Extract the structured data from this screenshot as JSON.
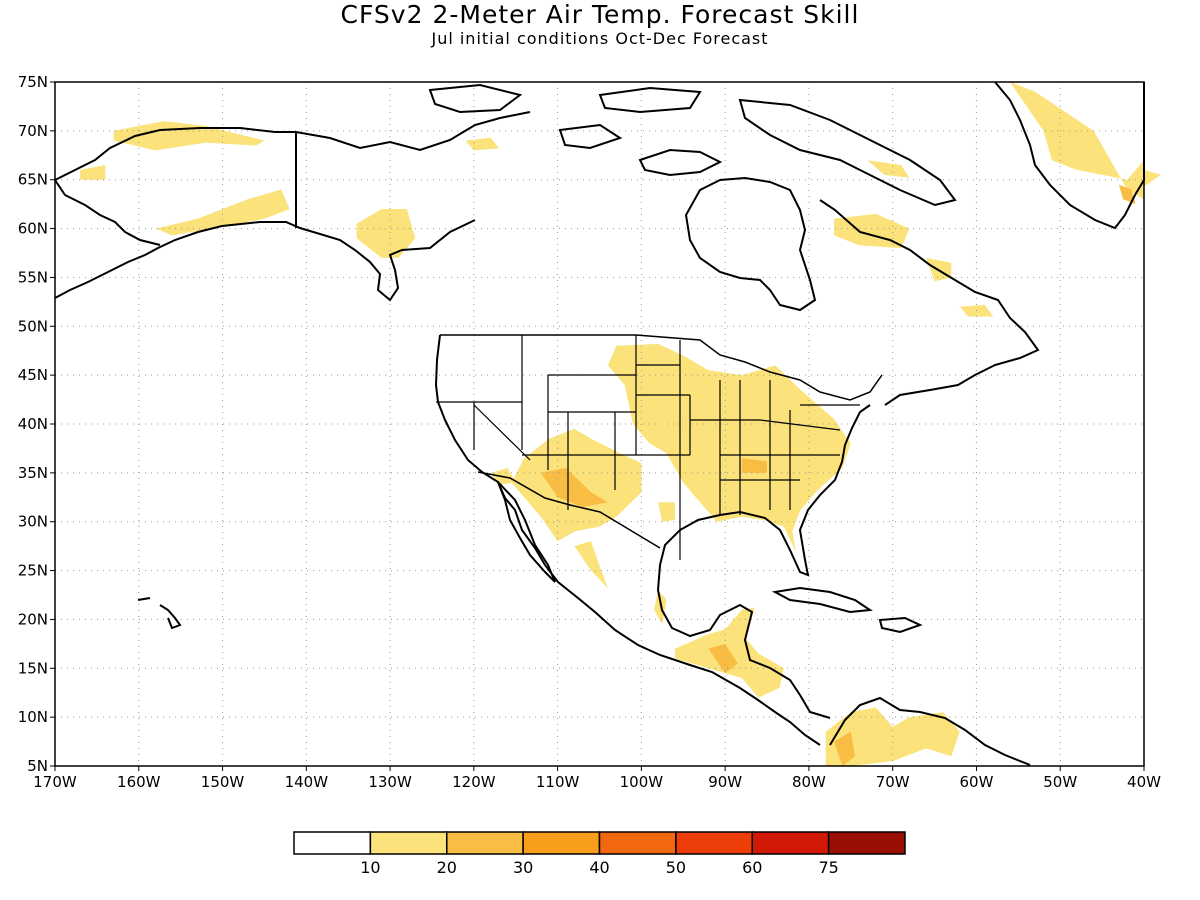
{
  "title": "CFSv2 2-Meter Air Temp. Forecast Skill",
  "subtitle": "Jul initial conditions  Oct-Dec Forecast",
  "map": {
    "lon_range": [
      -170,
      -40
    ],
    "lat_range": [
      5,
      75
    ],
    "lat_ticks": [
      5,
      10,
      15,
      20,
      25,
      30,
      35,
      40,
      45,
      50,
      55,
      60,
      65,
      70,
      75
    ],
    "lat_tick_labels": [
      "5N",
      "10N",
      "15N",
      "20N",
      "25N",
      "30N",
      "35N",
      "40N",
      "45N",
      "50N",
      "55N",
      "60N",
      "65N",
      "70N",
      "75N"
    ],
    "lon_ticks": [
      -170,
      -160,
      -150,
      -140,
      -130,
      -120,
      -110,
      -100,
      -90,
      -80,
      -70,
      -60,
      -50,
      -40
    ],
    "lon_tick_labels": [
      "170W",
      "160W",
      "150W",
      "140W",
      "130W",
      "120W",
      "110W",
      "100W",
      "90W",
      "80W",
      "70W",
      "60W",
      "50W",
      "40W"
    ],
    "grid": "dotted",
    "land_outline_color": "#000000",
    "skill_regions": [
      {
        "name": "alaska-north",
        "level": 1,
        "poly": [
          [
            -163,
            70
          ],
          [
            -157,
            71
          ],
          [
            -152,
            70.5
          ],
          [
            -145,
            69
          ],
          [
            -146,
            68.5
          ],
          [
            -152,
            68.8
          ],
          [
            -158,
            68
          ],
          [
            -163,
            69
          ]
        ]
      },
      {
        "name": "alaska-south",
        "level": 1,
        "poly": [
          [
            -158,
            60
          ],
          [
            -153,
            61
          ],
          [
            -147,
            63
          ],
          [
            -143,
            64
          ],
          [
            -142,
            62
          ],
          [
            -145,
            61
          ],
          [
            -150,
            60.2
          ],
          [
            -156,
            59.3
          ]
        ]
      },
      {
        "name": "west-alaska",
        "level": 1,
        "poly": [
          [
            -167,
            66
          ],
          [
            -164,
            66.5
          ],
          [
            -164,
            65
          ],
          [
            -167,
            65
          ]
        ]
      },
      {
        "name": "bc-coast",
        "level": 1,
        "poly": [
          [
            -134,
            60.5
          ],
          [
            -131,
            62
          ],
          [
            -128,
            62
          ],
          [
            -127,
            59
          ],
          [
            -129,
            57
          ],
          [
            -131,
            57
          ],
          [
            -134,
            59
          ]
        ]
      },
      {
        "name": "yukon-east",
        "level": 1,
        "poly": [
          [
            -121,
            69
          ],
          [
            -118,
            69.3
          ],
          [
            -117,
            68.2
          ],
          [
            -120,
            68
          ]
        ]
      },
      {
        "name": "quebec",
        "level": 1,
        "poly": [
          [
            -77,
            61
          ],
          [
            -72,
            61.5
          ],
          [
            -68,
            60
          ],
          [
            -69,
            58
          ],
          [
            -74,
            58.3
          ],
          [
            -77,
            59.3
          ]
        ]
      },
      {
        "name": "labrador",
        "level": 1,
        "poly": [
          [
            -66,
            57
          ],
          [
            -63,
            56.5
          ],
          [
            -63,
            55
          ],
          [
            -65,
            54.6
          ]
        ]
      },
      {
        "name": "baffin",
        "level": 1,
        "poly": [
          [
            -73,
            67
          ],
          [
            -69,
            66.5
          ],
          [
            -68,
            65.2
          ],
          [
            -71,
            65.5
          ]
        ]
      },
      {
        "name": "nfld",
        "level": 1,
        "poly": [
          [
            -62,
            52
          ],
          [
            -59,
            52.2
          ],
          [
            -58,
            51
          ],
          [
            -61,
            51
          ]
        ]
      },
      {
        "name": "greenland-west",
        "level": 1,
        "poly": [
          [
            -53,
            74
          ],
          [
            -46,
            70
          ],
          [
            -44,
            67
          ],
          [
            -42,
            64
          ],
          [
            -40,
            63
          ],
          [
            -40,
            67
          ],
          [
            -42,
            65
          ],
          [
            -48,
            66
          ],
          [
            -51,
            67
          ],
          [
            -52,
            70
          ],
          [
            -56,
            75
          ]
        ]
      },
      {
        "name": "greenland-east",
        "level": 1,
        "poly": [
          [
            -40,
            66
          ],
          [
            -38,
            65.5
          ],
          [
            -40,
            64.3
          ]
        ]
      },
      {
        "name": "us-central-east",
        "level": 1,
        "poly": [
          [
            -103,
            48
          ],
          [
            -98,
            48.2
          ],
          [
            -95,
            47
          ],
          [
            -92,
            45.5
          ],
          [
            -88,
            45
          ],
          [
            -84,
            46
          ],
          [
            -81,
            43.5
          ],
          [
            -77,
            40.5
          ],
          [
            -75,
            38
          ],
          [
            -76,
            35.5
          ],
          [
            -79,
            33.2
          ],
          [
            -81,
            31.2
          ],
          [
            -82,
            29
          ],
          [
            -81.5,
            26.8
          ],
          [
            -83,
            29.5
          ],
          [
            -85.5,
            30.2
          ],
          [
            -88,
            30.5
          ],
          [
            -91,
            30
          ],
          [
            -92.5,
            31.5
          ],
          [
            -95,
            34
          ],
          [
            -97,
            37
          ],
          [
            -99,
            38
          ],
          [
            -101,
            40
          ],
          [
            -102,
            44
          ],
          [
            -104,
            46
          ]
        ]
      },
      {
        "name": "us-southwest",
        "level": 1,
        "poly": [
          [
            -114,
            36.5
          ],
          [
            -111,
            38.5
          ],
          [
            -108,
            39.5
          ],
          [
            -106,
            38.5
          ],
          [
            -103,
            37.2
          ],
          [
            -100,
            36
          ],
          [
            -100,
            33
          ],
          [
            -103,
            30.5
          ],
          [
            -105,
            29.5
          ],
          [
            -108,
            29
          ],
          [
            -110,
            28
          ],
          [
            -112,
            30.5
          ],
          [
            -114,
            32.5
          ],
          [
            -115.5,
            34
          ]
        ]
      },
      {
        "name": "socal",
        "level": 1,
        "poly": [
          [
            -118,
            35
          ],
          [
            -116,
            35.5
          ],
          [
            -115,
            34
          ],
          [
            -117,
            33.8
          ]
        ]
      },
      {
        "name": "mexico-west",
        "level": 1,
        "poly": [
          [
            -108,
            27.5
          ],
          [
            -106,
            28
          ],
          [
            -105,
            25.5
          ],
          [
            -104,
            23.2
          ],
          [
            -106,
            25
          ]
        ]
      },
      {
        "name": "mexico-gulf",
        "level": 1,
        "poly": [
          [
            -98,
            23
          ],
          [
            -97,
            22
          ],
          [
            -97.5,
            19.5
          ],
          [
            -98.5,
            21
          ]
        ]
      },
      {
        "name": "texas-gulf",
        "level": 1,
        "poly": [
          [
            -98,
            32
          ],
          [
            -96,
            32
          ],
          [
            -96,
            30.2
          ],
          [
            -97.5,
            30
          ]
        ]
      },
      {
        "name": "yucatan-central-am",
        "level": 1,
        "poly": [
          [
            -96,
            17
          ],
          [
            -92,
            18.5
          ],
          [
            -90,
            19
          ],
          [
            -88,
            21
          ],
          [
            -86.5,
            21.2
          ],
          [
            -87.5,
            18
          ],
          [
            -86,
            16.5
          ],
          [
            -83,
            15
          ],
          [
            -83.5,
            13
          ],
          [
            -86,
            12
          ],
          [
            -88,
            14
          ],
          [
            -92,
            15
          ],
          [
            -96,
            16
          ]
        ]
      },
      {
        "name": "colombia-venezuela",
        "level": 1,
        "poly": [
          [
            -78,
            8.5
          ],
          [
            -75,
            10.5
          ],
          [
            -72,
            11
          ],
          [
            -70,
            9
          ],
          [
            -68,
            10
          ],
          [
            -64,
            10.5
          ],
          [
            -62,
            8.5
          ],
          [
            -63,
            6
          ],
          [
            -66,
            6.8
          ],
          [
            -70,
            5.5
          ],
          [
            -75,
            5
          ],
          [
            -78,
            5
          ]
        ]
      },
      {
        "name": "greenland-south",
        "level": 2,
        "poly": [
          [
            -43,
            64.5
          ],
          [
            -41.5,
            64
          ],
          [
            -41,
            62.5
          ],
          [
            -42.5,
            63
          ]
        ]
      },
      {
        "name": "sw-core",
        "level": 2,
        "poly": [
          [
            -112,
            35
          ],
          [
            -109,
            35.5
          ],
          [
            -106,
            33
          ],
          [
            -104,
            32
          ],
          [
            -107,
            31.5
          ],
          [
            -110,
            32.5
          ]
        ]
      },
      {
        "name": "tn-valley",
        "level": 2,
        "poly": [
          [
            -88,
            36.5
          ],
          [
            -85,
            36.2
          ],
          [
            -85,
            35
          ],
          [
            -88,
            35
          ]
        ]
      },
      {
        "name": "guatemala",
        "level": 2,
        "poly": [
          [
            -92,
            17
          ],
          [
            -90,
            17.5
          ],
          [
            -88.5,
            15.5
          ],
          [
            -90,
            14.5
          ]
        ]
      },
      {
        "name": "colombia-core",
        "level": 2,
        "poly": [
          [
            -77,
            7.5
          ],
          [
            -75,
            8.5
          ],
          [
            -74.5,
            6
          ],
          [
            -76,
            5
          ]
        ]
      }
    ]
  },
  "colorbar": {
    "labels": [
      "10",
      "20",
      "30",
      "40",
      "50",
      "60",
      "75"
    ],
    "colors": [
      "#ffffff",
      "#fbe27a",
      "#f9bd43",
      "#f89d1c",
      "#f26810",
      "#ed3e09",
      "#d21807",
      "#9a0f05"
    ]
  }
}
